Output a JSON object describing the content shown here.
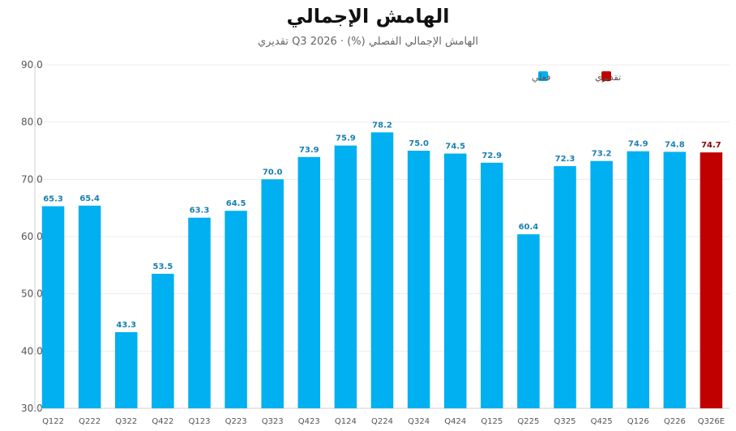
{
  "chart_data": {
    "type": "bar",
    "title": "الهامش الإجمالي",
    "subtitle": "الهامش الإجمالي الفصلي (%) · Q3 2026 تقديري",
    "categories": [
      "Q122",
      "Q222",
      "Q322",
      "Q422",
      "Q123",
      "Q223",
      "Q323",
      "Q423",
      "Q124",
      "Q224",
      "Q324",
      "Q424",
      "Q125",
      "Q225",
      "Q325",
      "Q425",
      "Q126",
      "Q226",
      "Q326E"
    ],
    "series": [
      {
        "name": "فعلي",
        "color": "#00b0f0",
        "label_color": "#1a7fb0",
        "values": [
          65.3,
          65.4,
          43.3,
          53.5,
          63.3,
          64.5,
          70.0,
          73.9,
          75.9,
          78.2,
          75.0,
          74.5,
          72.9,
          60.4,
          72.3,
          73.2,
          74.9,
          74.8,
          null
        ]
      },
      {
        "name": "تقديري",
        "color": "#c00000",
        "label_color": "#8b0000",
        "values": [
          null,
          null,
          null,
          null,
          null,
          null,
          null,
          null,
          null,
          null,
          null,
          null,
          null,
          null,
          null,
          null,
          null,
          null,
          74.7
        ]
      }
    ],
    "ylim": [
      30,
      90
    ],
    "yticks": [
      30.0,
      40.0,
      50.0,
      60.0,
      70.0,
      80.0,
      90.0
    ],
    "grid": true,
    "legend_position": "top-right"
  }
}
